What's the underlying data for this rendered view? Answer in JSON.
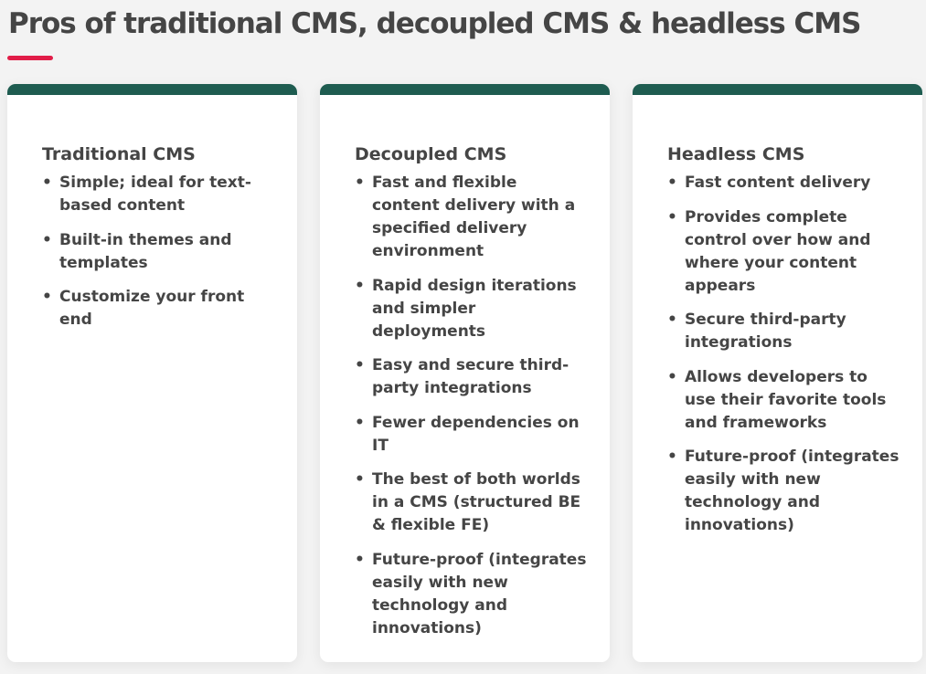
{
  "page": {
    "title": "Pros of traditional CMS, decoupled CMS & headless CMS"
  },
  "colors": {
    "accent": "#e11d48",
    "card_header": "#1e5c50",
    "text": "#454545",
    "card_bg": "#ffffff",
    "page_bg": "#f3f3f3"
  },
  "cards": [
    {
      "title": "Traditional CMS",
      "items": [
        "Simple; ideal for text-based content",
        "Built-in themes and templates",
        "Customize your front end"
      ]
    },
    {
      "title": "Decoupled CMS",
      "items": [
        "Fast and flexible content delivery with a specified delivery environment",
        "Rapid design iterations and simpler deployments",
        "Easy and secure third-party integrations",
        "Fewer dependencies on IT",
        "The best of both worlds in a CMS (structured BE & flexible FE)",
        "Future-proof (integrates easily with new technology and innovations)"
      ]
    },
    {
      "title": "Headless CMS",
      "items": [
        "Fast content delivery",
        "Provides complete control over how and where your content appears",
        "Secure third-party integrations",
        "Allows developers to use their favorite tools and frameworks",
        "Future-proof (integrates easily with new technology and innovations)"
      ]
    }
  ]
}
